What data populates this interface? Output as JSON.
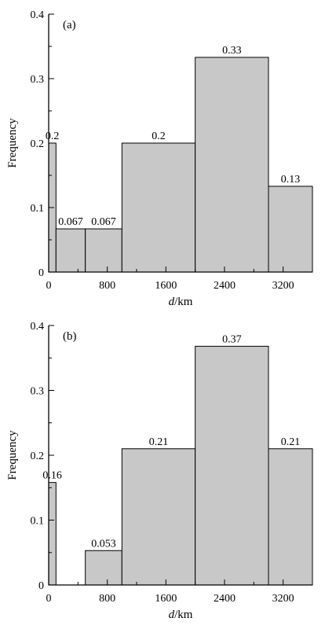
{
  "chart_data": [
    {
      "type": "bar",
      "panel_label": "(a)",
      "xlabel_italic": "d",
      "xlabel_unit": "/km",
      "ylabel": "Frequency",
      "xlim": [
        0,
        3600
      ],
      "ylim": [
        0,
        0.4
      ],
      "xticks": [
        0,
        800,
        1600,
        2400,
        3200
      ],
      "yticks": [
        0,
        0.1,
        0.2,
        0.3,
        0.4
      ],
      "bins": [
        {
          "x0": 0,
          "x1": 100,
          "value": 0.2,
          "label": "0.2"
        },
        {
          "x0": 100,
          "x1": 500,
          "value": 0.067,
          "label": "0.067"
        },
        {
          "x0": 500,
          "x1": 1000,
          "value": 0.067,
          "label": "0.067"
        },
        {
          "x0": 1000,
          "x1": 2000,
          "value": 0.2,
          "label": "0.2"
        },
        {
          "x0": 2000,
          "x1": 3000,
          "value": 0.333,
          "label": "0.33"
        },
        {
          "x0": 3000,
          "x1": 3600,
          "value": 0.133,
          "label": "0.13"
        }
      ]
    },
    {
      "type": "bar",
      "panel_label": "(b)",
      "xlabel_italic": "d",
      "xlabel_unit": "/km",
      "ylabel": "Frequency",
      "xlim": [
        0,
        3600
      ],
      "ylim": [
        0,
        0.4
      ],
      "xticks": [
        0,
        800,
        1600,
        2400,
        3200
      ],
      "yticks": [
        0,
        0.1,
        0.2,
        0.3,
        0.4
      ],
      "bins": [
        {
          "x0": 0,
          "x1": 100,
          "value": 0.158,
          "label": "0.16"
        },
        {
          "x0": 500,
          "x1": 1000,
          "value": 0.053,
          "label": "0.053"
        },
        {
          "x0": 1000,
          "x1": 2000,
          "value": 0.21,
          "label": "0.21"
        },
        {
          "x0": 2000,
          "x1": 3000,
          "value": 0.368,
          "label": "0.37"
        },
        {
          "x0": 3000,
          "x1": 3600,
          "value": 0.21,
          "label": "0.21"
        }
      ]
    }
  ]
}
